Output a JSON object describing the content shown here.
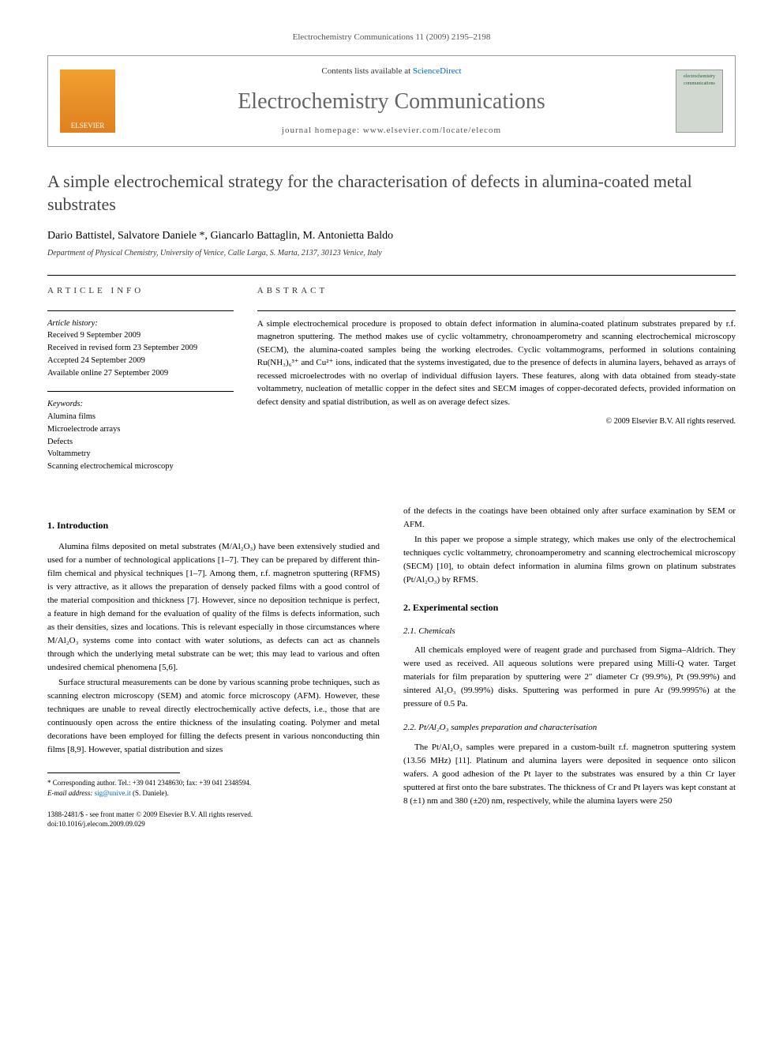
{
  "running_header": "Electrochemistry Communications 11 (2009) 2195–2198",
  "header": {
    "contents_line_pre": "Contents lists available at ",
    "contents_link": "ScienceDirect",
    "journal_name": "Electrochemistry Communications",
    "homepage_label": "journal homepage: www.elsevier.com/locate/elecom",
    "publisher": "ELSEVIER",
    "cover_text": "electrochemistry communications"
  },
  "title": "A simple electrochemical strategy for the characterisation of defects in alumina-coated metal substrates",
  "authors_html": "Dario Battistel, Salvatore Daniele *, Giancarlo Battaglin, M. Antonietta Baldo",
  "affiliation": "Department of Physical Chemistry, University of Venice, Calle Larga, S. Marta, 2137, 30123 Venice, Italy",
  "info": {
    "section_label": "ARTICLE INFO",
    "history_label": "Article history:",
    "history": [
      "Received 9 September 2009",
      "Received in revised form 23 September 2009",
      "Accepted 24 September 2009",
      "Available online 27 September 2009"
    ],
    "keywords_label": "Keywords:",
    "keywords": [
      "Alumina films",
      "Microelectrode arrays",
      "Defects",
      "Voltammetry",
      "Scanning electrochemical microscopy"
    ]
  },
  "abstract": {
    "section_label": "ABSTRACT",
    "text": "A simple electrochemical procedure is proposed to obtain defect information in alumina-coated platinum substrates prepared by r.f. magnetron sputtering. The method makes use of cyclic voltammetry, chronoamperometry and scanning electrochemical microscopy (SECM), the alumina-coated samples being the working electrodes. Cyclic voltammograms, performed in solutions containing Ru(NH₃)₆³⁺ and Cu²⁺ ions, indicated that the systems investigated, due to the presence of defects in alumina layers, behaved as arrays of recessed microelectrodes with no overlap of individual diffusion layers. These features, along with data obtained from steady-state voltammetry, nucleation of metallic copper in the defect sites and SECM images of copper-decorated defects, provided information on defect density and spatial distribution, as well as on average defect sizes.",
    "copyright": "© 2009 Elsevier B.V. All rights reserved."
  },
  "body": {
    "left": {
      "s1_title": "1. Introduction",
      "s1_p1": "Alumina films deposited on metal substrates (M/Al₂O₃) have been extensively studied and used for a number of technological applications [1–7]. They can be prepared by different thin-film chemical and physical techniques [1–7]. Among them, r.f. magnetron sputtering (RFMS) is very attractive, as it allows the preparation of densely packed films with a good control of the material composition and thickness [7]. However, since no deposition technique is perfect, a feature in high demand for the evaluation of quality of the films is defects information, such as their densities, sizes and locations. This is relevant especially in those circumstances where M/Al₂O₃ systems come into contact with water solutions, as defects can act as channels through which the underlying metal substrate can be wet; this may lead to various and often undesired chemical phenomena [5,6].",
      "s1_p2": "Surface structural measurements can be done by various scanning probe techniques, such as scanning electron microscopy (SEM) and atomic force microscopy (AFM). However, these techniques are unable to reveal directly electrochemically active defects, i.e., those that are continuously open across the entire thickness of the insulating coating. Polymer and metal decorations have been employed for filling the defects present in various nonconducting thin films [8,9]. However, spatial distribution and sizes"
    },
    "right": {
      "r_p1": "of the defects in the coatings have been obtained only after surface examination by SEM or AFM.",
      "r_p2": "In this paper we propose a simple strategy, which makes use only of the electrochemical techniques cyclic voltammetry, chronoamperometry and scanning electrochemical microscopy (SECM) [10], to obtain defect information in alumina films grown on platinum substrates (Pt/Al₂O₃) by RFMS.",
      "s2_title": "2. Experimental section",
      "s2_1_title": "2.1. Chemicals",
      "s2_1_p1": "All chemicals employed were of reagent grade and purchased from Sigma–Aldrich. They were used as received. All aqueous solutions were prepared using Milli-Q water. Target materials for film preparation by sputtering were 2″ diameter Cr (99.9%), Pt (99.99%) and sintered Al₂O₃ (99.99%) disks. Sputtering was performed in pure Ar (99.9995%) at the pressure of 0.5 Pa.",
      "s2_2_title": "2.2. Pt/Al₂O₃ samples preparation and characterisation",
      "s2_2_p1": "The Pt/Al₂O₃ samples were prepared in a custom-built r.f. magnetron sputtering system (13.56 MHz) [11]. Platinum and alumina layers were deposited in sequence onto silicon wafers. A good adhesion of the Pt layer to the substrates was ensured by a thin Cr layer sputtered at first onto the bare substrates. The thickness of Cr and Pt layers was kept constant at 8 (±1) nm and 380 (±20) nm, respectively, while the alumina layers were 250"
    }
  },
  "footnote": {
    "corr": "* Corresponding author. Tel.: +39 041 2348630; fax: +39 041 2348594.",
    "email_label": "E-mail address:",
    "email": "sig@unive.it",
    "email_name": "(S. Daniele)."
  },
  "bottom": {
    "issn": "1388-2481/$ - see front matter © 2009 Elsevier B.V. All rights reserved.",
    "doi": "doi:10.1016/j.elecom.2009.09.029"
  },
  "colors": {
    "link": "#0066cc",
    "text": "#000000",
    "title": "#444444",
    "journal_gray": "#666666"
  }
}
